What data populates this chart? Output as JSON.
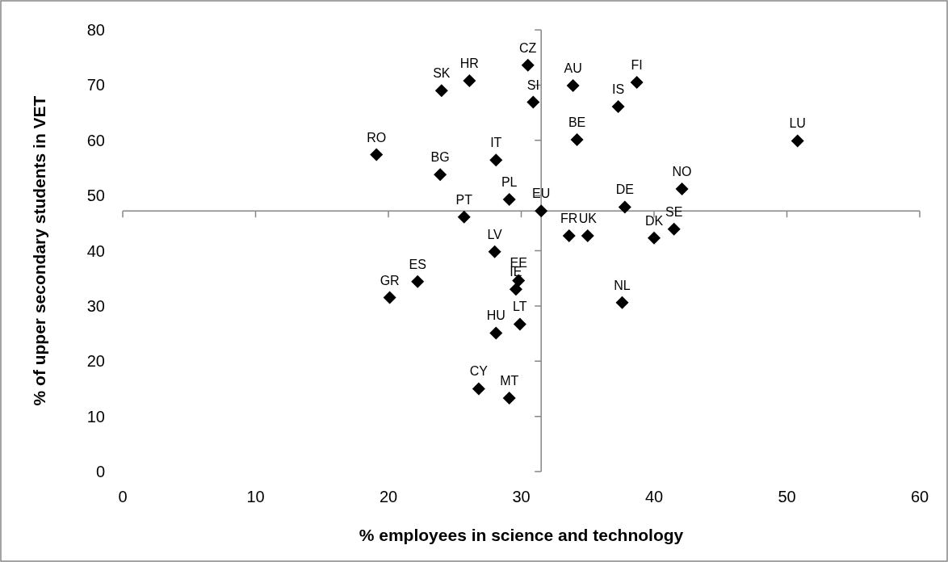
{
  "chart_data": {
    "type": "scatter",
    "xlabel": "% employees in science and technology",
    "ylabel": "% of upper secondary students in VET",
    "xlim": [
      0,
      60
    ],
    "xticks": [
      0,
      10,
      20,
      30,
      40,
      50,
      60
    ],
    "ylim": [
      0,
      80
    ],
    "yticks": [
      0,
      10,
      20,
      30,
      40,
      50,
      60,
      70,
      80
    ],
    "grid": false,
    "marker": "diamond",
    "ref_lines": [
      {
        "axis": "x",
        "value": 31.5,
        "color": "#868686"
      },
      {
        "axis": "y",
        "value": 47.2,
        "color": "#868686"
      }
    ],
    "series": [
      {
        "name": "RO",
        "color": "#000000",
        "x": [
          19.1
        ],
        "values": [
          57.4
        ]
      },
      {
        "name": "SK",
        "color": "#000000",
        "x": [
          24.0
        ],
        "values": [
          69.0
        ]
      },
      {
        "name": "HR",
        "color": "#000000",
        "x": [
          26.1
        ],
        "values": [
          70.8
        ]
      },
      {
        "name": "BG",
        "color": "#000000",
        "x": [
          23.9
        ],
        "values": [
          53.8
        ]
      },
      {
        "name": "PT",
        "color": "#000000",
        "x": [
          25.7
        ],
        "values": [
          46.1
        ]
      },
      {
        "name": "GR",
        "color": "#000000",
        "x": [
          20.1
        ],
        "values": [
          31.5
        ]
      },
      {
        "name": "ES",
        "color": "#000000",
        "x": [
          22.2
        ],
        "values": [
          34.4
        ]
      },
      {
        "name": "CY",
        "color": "#000000",
        "x": [
          26.8
        ],
        "values": [
          15.0
        ]
      },
      {
        "name": "CZ",
        "color": "#000000",
        "x": [
          30.5
        ],
        "values": [
          73.6
        ]
      },
      {
        "name": "SI",
        "color": "#000000",
        "x": [
          30.9
        ],
        "values": [
          66.9
        ]
      },
      {
        "name": "AU",
        "color": "#000000",
        "x": [
          33.9
        ],
        "values": [
          69.9
        ]
      },
      {
        "name": "IS",
        "color": "#000000",
        "x": [
          37.3
        ],
        "values": [
          66.1
        ]
      },
      {
        "name": "FI",
        "color": "#000000",
        "x": [
          38.7
        ],
        "values": [
          70.5
        ]
      },
      {
        "name": "BE",
        "color": "#000000",
        "x": [
          34.2
        ],
        "values": [
          60.1
        ]
      },
      {
        "name": "LU",
        "color": "#000000",
        "x": [
          50.8
        ],
        "values": [
          59.9
        ]
      },
      {
        "name": "IT",
        "color": "#000000",
        "x": [
          28.1
        ],
        "values": [
          56.4
        ]
      },
      {
        "name": "PL",
        "color": "#000000",
        "x": [
          29.1
        ],
        "values": [
          49.3
        ]
      },
      {
        "name": "EU",
        "color": "#000000",
        "x": [
          31.5
        ],
        "values": [
          47.2
        ]
      },
      {
        "name": "NO",
        "color": "#000000",
        "x": [
          42.1
        ],
        "values": [
          51.2
        ]
      },
      {
        "name": "DE",
        "color": "#000000",
        "x": [
          37.8
        ],
        "values": [
          47.9
        ]
      },
      {
        "name": "FR",
        "color": "#000000",
        "x": [
          33.6
        ],
        "values": [
          42.7
        ]
      },
      {
        "name": "UK",
        "color": "#000000",
        "x": [
          35.0
        ],
        "values": [
          42.7
        ]
      },
      {
        "name": "DK",
        "color": "#000000",
        "x": [
          40.0
        ],
        "values": [
          42.3
        ]
      },
      {
        "name": "SE",
        "color": "#000000",
        "x": [
          41.5
        ],
        "values": [
          43.9
        ]
      },
      {
        "name": "LV",
        "color": "#000000",
        "x": [
          28.0
        ],
        "values": [
          39.8
        ]
      },
      {
        "name": "EE",
        "color": "#000000",
        "x": [
          29.8
        ],
        "values": [
          34.6
        ]
      },
      {
        "name": "IE",
        "color": "#000000",
        "x": [
          29.6
        ],
        "values": [
          33.0
        ]
      },
      {
        "name": "LT",
        "color": "#000000",
        "x": [
          29.9
        ],
        "values": [
          26.7
        ]
      },
      {
        "name": "HU",
        "color": "#000000",
        "x": [
          28.1
        ],
        "values": [
          25.1
        ]
      },
      {
        "name": "NL",
        "color": "#000000",
        "x": [
          37.6
        ],
        "values": [
          30.6
        ]
      },
      {
        "name": "MT",
        "color": "#000000",
        "x": [
          29.1
        ],
        "values": [
          13.3
        ]
      }
    ]
  }
}
